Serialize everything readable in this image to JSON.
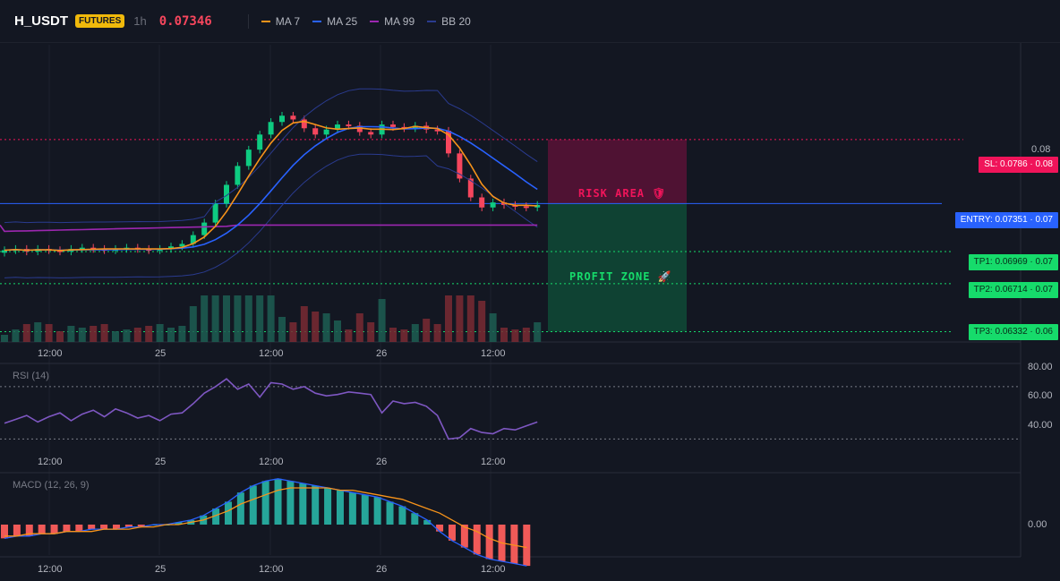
{
  "header": {
    "symbol": "H_USDT",
    "market_badge": "FUTURES",
    "timeframe": "1h",
    "last_price": "0.07346",
    "indicators": [
      {
        "label": "MA 7",
        "color": "#f7931a"
      },
      {
        "label": "MA 25",
        "color": "#2962ff"
      },
      {
        "label": "MA 99",
        "color": "#9c27b0"
      },
      {
        "label": "BB 20",
        "color": "#2a3b8f"
      }
    ]
  },
  "levels": {
    "sl": "SL: 0.0786 · 0.08",
    "entry": "ENTRY: 0.07351 · 0.07",
    "tp1": "TP1: 0.06969 · 0.07",
    "tp2": "TP2: 0.06714 · 0.07",
    "tp3": "TP3: 0.06332 · 0.06"
  },
  "zones": {
    "risk": "RISK AREA 🛡",
    "profit": "PROFIT ZONE 🚀"
  },
  "price_axis": [
    "0.08"
  ],
  "time_axis": [
    "12:00",
    "25",
    "12:00",
    "26",
    "12:00"
  ],
  "rsi": {
    "title": "RSI (14)",
    "ticks": [
      "80.00",
      "60.00",
      "40.00"
    ]
  },
  "macd": {
    "title": "MACD (12, 26, 9)",
    "ticks": [
      "0.00"
    ]
  },
  "colors": {
    "up": "#26a69a",
    "up_candle": "#0ecb81",
    "down": "#f6465d",
    "rsi": "#7e57c2",
    "macd_line": "#2962ff",
    "signal_line": "#f7931a"
  },
  "chart_data": {
    "type": "line",
    "price_series_close": [
      0.0698,
      0.0699,
      0.0697,
      0.0699,
      0.0698,
      0.0697,
      0.0699,
      0.07,
      0.0699,
      0.0698,
      0.0699,
      0.07,
      0.0699,
      0.0698,
      0.0699,
      0.0701,
      0.0703,
      0.071,
      0.072,
      0.0735,
      0.075,
      0.0765,
      0.0778,
      0.079,
      0.08,
      0.0805,
      0.0802,
      0.0795,
      0.079,
      0.0794,
      0.0798,
      0.0797,
      0.0792,
      0.079,
      0.0798,
      0.0796,
      0.0795,
      0.0797,
      0.0794,
      0.0793,
      0.0775,
      0.0755,
      0.074,
      0.0732,
      0.0736,
      0.0734,
      0.0733,
      0.0732,
      0.0734
    ],
    "rsi_series": [
      42,
      45,
      48,
      43,
      47,
      50,
      44,
      49,
      52,
      47,
      53,
      50,
      46,
      48,
      44,
      49,
      50,
      57,
      65,
      70,
      76,
      68,
      72,
      62,
      73,
      72,
      68,
      70,
      65,
      63,
      64,
      66,
      65,
      64,
      50,
      59,
      57,
      58,
      55,
      48,
      30,
      31,
      38,
      35,
      34,
      38,
      37,
      40,
      43
    ],
    "macd_line": [
      -0.0006,
      -0.0005,
      -0.0005,
      -0.0004,
      -0.0004,
      -0.0003,
      -0.0003,
      -0.0002,
      -0.0002,
      -0.0002,
      -0.0001,
      -0.0001,
      0.0,
      0.0,
      0.0001,
      0.0002,
      0.0004,
      0.0007,
      0.001,
      0.0014,
      0.0017,
      0.0019,
      0.002,
      0.0019,
      0.0018,
      0.0017,
      0.0016,
      0.0015,
      0.0014,
      0.0013,
      0.0012,
      0.001,
      0.0008,
      0.0005,
      0.0002,
      -0.0003,
      -0.0007,
      -0.001,
      -0.0013,
      -0.0015,
      -0.0016,
      -0.0017,
      -0.0018
    ],
    "signal_line": [
      -0.0005,
      -0.0005,
      -0.0004,
      -0.0004,
      -0.0004,
      -0.0003,
      -0.0003,
      -0.0003,
      -0.0002,
      -0.0002,
      -0.0002,
      -0.0001,
      -0.0001,
      0.0,
      0.0,
      0.0001,
      0.0002,
      0.0004,
      0.0006,
      0.0009,
      0.0011,
      0.0013,
      0.0015,
      0.0016,
      0.0016,
      0.0016,
      0.0016,
      0.0015,
      0.0015,
      0.0014,
      0.0013,
      0.0012,
      0.0011,
      0.0009,
      0.0007,
      0.0005,
      0.0002,
      -0.0001,
      -0.0003,
      -0.0006,
      -0.0008,
      -0.0009,
      -0.001
    ]
  }
}
